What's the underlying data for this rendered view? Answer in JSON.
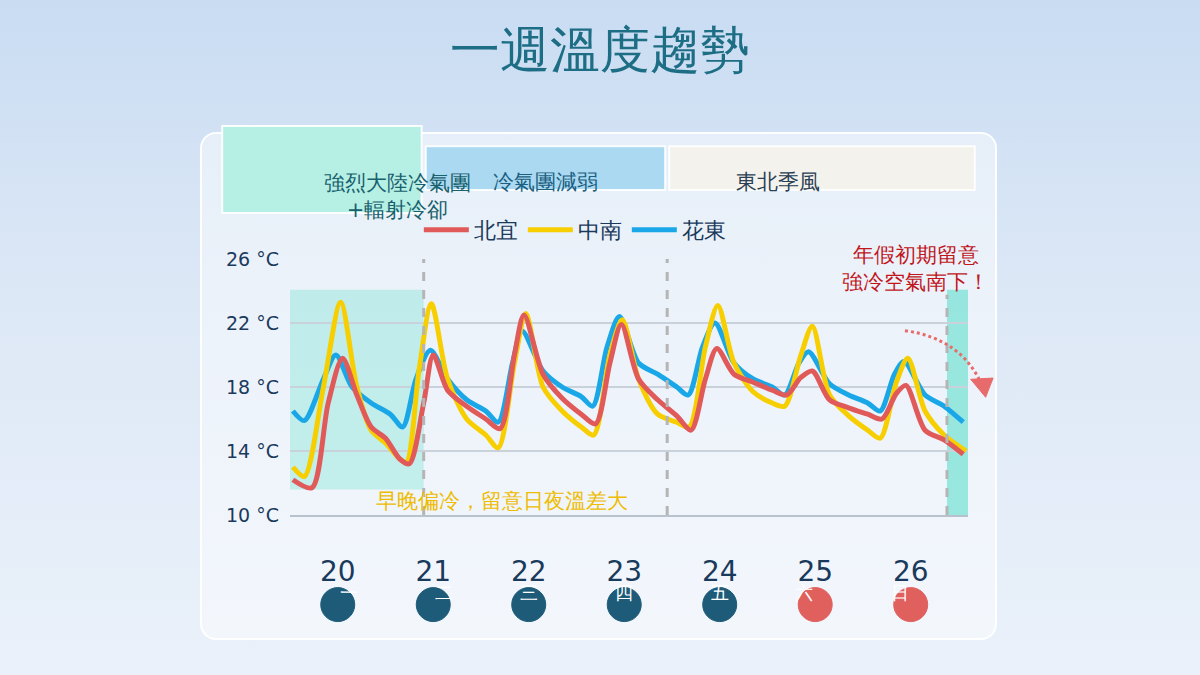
{
  "chart_data": {
    "type": "line",
    "title": "一週溫度趨勢",
    "xlim": [
      19.5,
      26.6
    ],
    "xticks": [
      20,
      21,
      22,
      23,
      24,
      25,
      26
    ],
    "weekdays": [
      "一",
      "二",
      "三",
      "四",
      "五",
      "六",
      "日"
    ],
    "ylim": [
      10,
      26
    ],
    "yticks": [
      {
        "value": 10,
        "label": "10 °C"
      },
      {
        "value": 14,
        "label": "14 °C"
      },
      {
        "value": 18,
        "label": "18 °C"
      },
      {
        "value": 22,
        "label": "22 °C"
      },
      {
        "value": 26,
        "label": "26 °C"
      }
    ],
    "grid": true,
    "legend": "top",
    "line_style": "solid",
    "marker": "none",
    "series": [
      {
        "name": "北宜",
        "color": "#e05a5a",
        "x": [
          19.53,
          19.73,
          19.9,
          20.05,
          20.2,
          20.35,
          20.5,
          20.65,
          20.75,
          20.9,
          21.0,
          21.15,
          21.35,
          21.55,
          21.7,
          21.85,
          21.95,
          22.15,
          22.35,
          22.55,
          22.7,
          22.85,
          22.97,
          23.15,
          23.35,
          23.55,
          23.7,
          23.85,
          23.97,
          24.15,
          24.35,
          24.55,
          24.7,
          24.85,
          24.97,
          25.15,
          25.35,
          25.55,
          25.7,
          25.85,
          25.95,
          26.15,
          26.35,
          26.55
        ],
        "values": [
          12.2,
          11.7,
          17,
          19.8,
          17.5,
          15.5,
          14.8,
          13.5,
          13.2,
          17,
          20,
          17.8,
          16.8,
          16,
          15.4,
          20,
          22.5,
          18.8,
          17.3,
          16.3,
          15.7,
          19.5,
          21.9,
          18.5,
          17.2,
          16.2,
          15.3,
          18.5,
          20.4,
          18.8,
          18.3,
          17.8,
          17.5,
          18.6,
          19,
          17.2,
          16.7,
          16.3,
          16,
          17.6,
          18.1,
          15.3,
          14.7,
          13.8
        ]
      },
      {
        "name": "中南",
        "color": "#f7cf00",
        "x": [
          19.53,
          19.65,
          19.85,
          20.03,
          20.2,
          20.35,
          20.5,
          20.65,
          20.72,
          20.85,
          20.98,
          21.15,
          21.35,
          21.55,
          21.68,
          21.85,
          21.97,
          22.15,
          22.35,
          22.55,
          22.68,
          22.85,
          22.98,
          23.15,
          23.35,
          23.55,
          23.68,
          23.85,
          23.98,
          24.15,
          24.35,
          24.55,
          24.68,
          24.85,
          24.97,
          25.15,
          25.35,
          25.55,
          25.68,
          25.85,
          25.97,
          26.15,
          26.35,
          26.58
        ],
        "values": [
          13,
          12.4,
          18,
          23.3,
          18,
          15.3,
          14.5,
          13.5,
          13.3,
          19,
          23.2,
          18.5,
          16,
          15,
          14.2,
          19.5,
          22.6,
          18,
          16.5,
          15.5,
          15,
          20,
          22.2,
          18.5,
          16.3,
          15.8,
          15.5,
          20.5,
          23.1,
          19.5,
          17.7,
          17,
          16.8,
          20,
          21.8,
          17.5,
          16.2,
          15.3,
          14.8,
          18.3,
          19.8,
          16.5,
          15,
          14
        ]
      },
      {
        "name": "花東",
        "color": "#1aa7e8",
        "x": [
          19.53,
          19.65,
          19.85,
          19.98,
          20.15,
          20.35,
          20.55,
          20.68,
          20.82,
          20.97,
          21.15,
          21.35,
          21.55,
          21.68,
          21.83,
          21.93,
          22.15,
          22.35,
          22.55,
          22.67,
          22.82,
          22.95,
          23.15,
          23.35,
          23.55,
          23.67,
          23.82,
          23.95,
          24.15,
          24.35,
          24.55,
          24.68,
          24.83,
          24.93,
          25.15,
          25.35,
          25.55,
          25.68,
          25.83,
          25.93,
          26.15,
          26.35,
          26.55
        ],
        "values": [
          16.5,
          15.9,
          18.5,
          20,
          18,
          17,
          16.3,
          15.5,
          18.5,
          20.3,
          18.5,
          17.2,
          16.5,
          15.8,
          19.5,
          21.5,
          19,
          18,
          17.4,
          16.8,
          20.5,
          22.4,
          19.5,
          18.8,
          18,
          17.5,
          20.5,
          22,
          19.5,
          18.5,
          18,
          17.5,
          19.5,
          20.2,
          18.2,
          17.5,
          17,
          16.5,
          18.8,
          19.6,
          17.5,
          16.8,
          15.8
        ]
      }
    ],
    "phases": [
      {
        "label": "強烈大陸冷氣團+輻射冷卻",
        "end": 20.9
      },
      {
        "label": "冷氣團減弱",
        "start": 20.9,
        "end": 23.45
      },
      {
        "label": "東北季風",
        "start": 23.45
      }
    ],
    "holiday_start": 26.38,
    "annotations": [
      {
        "text": "早晚偏冷，留意日夜溫差大",
        "x": 21.72,
        "y": 10.9,
        "color": "#eebc00"
      },
      {
        "text": "年假初期留意強冷空氣南下！",
        "x": 26.05,
        "y": 25.4,
        "color": "#c0161c"
      }
    ]
  }
}
